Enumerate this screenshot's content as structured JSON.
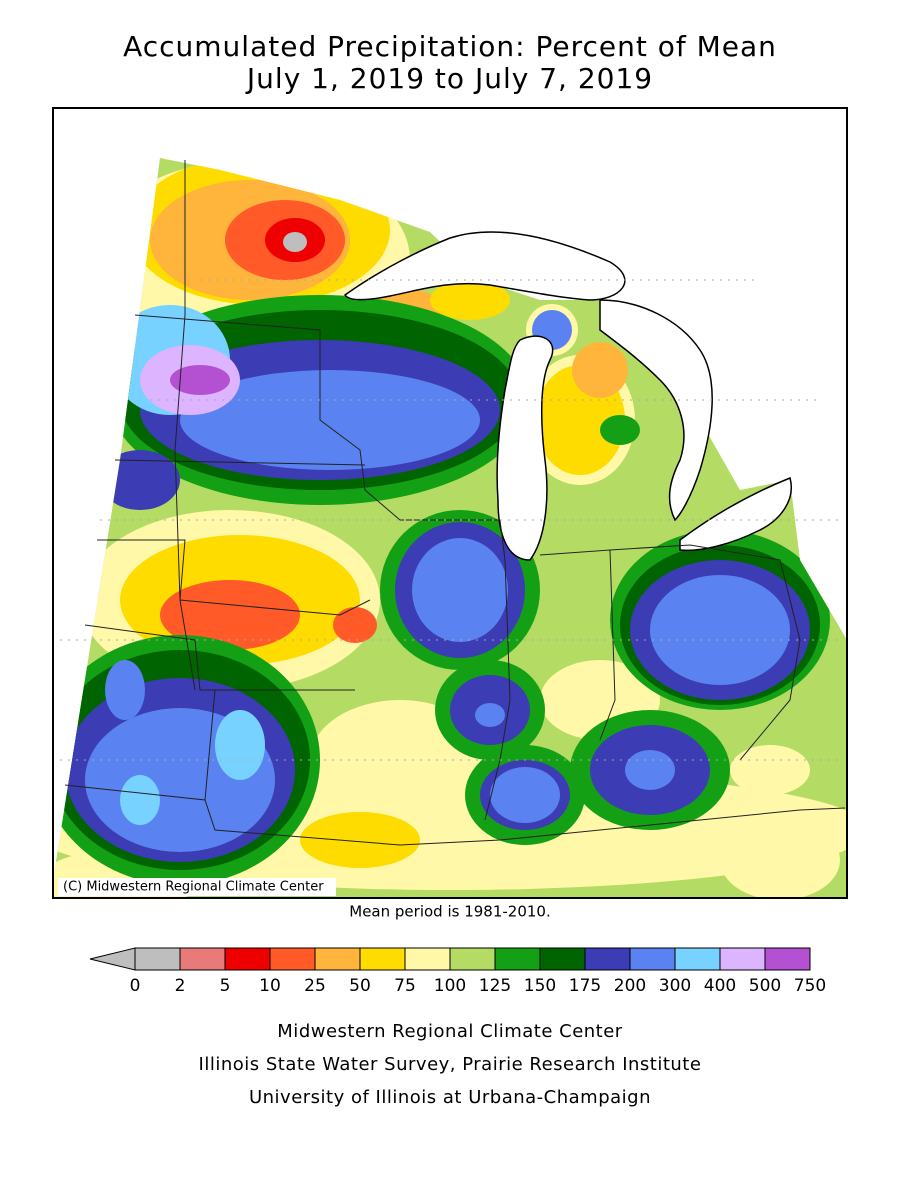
{
  "title": [
    "Accumulated Precipitation: Percent of Mean",
    "July 1, 2019 to July 7, 2019"
  ],
  "map": {
    "credit": "(C) Midwestern Regional Climate Center"
  },
  "note": "Mean period is 1981-2010.",
  "legend": {
    "below_color": "#bebebe",
    "colors": [
      "#bebebe",
      "#e87a7a",
      "#ee0000",
      "#ff5a28",
      "#ffb43c",
      "#ffdc00",
      "#fff8a8",
      "#b4dc64",
      "#14a014",
      "#006400",
      "#3c3cb4",
      "#5a82f0",
      "#78d2ff",
      "#dcb4ff",
      "#b450d2"
    ],
    "bounds": [
      0,
      2,
      5,
      10,
      25,
      50,
      75,
      100,
      125,
      150,
      175,
      200,
      300,
      400,
      500,
      750
    ]
  },
  "footer": [
    "Midwestern Regional Climate Center",
    "Illinois State Water Survey, Prairie Research Institute",
    "University of Illinois at Urbana-Champaign"
  ]
}
